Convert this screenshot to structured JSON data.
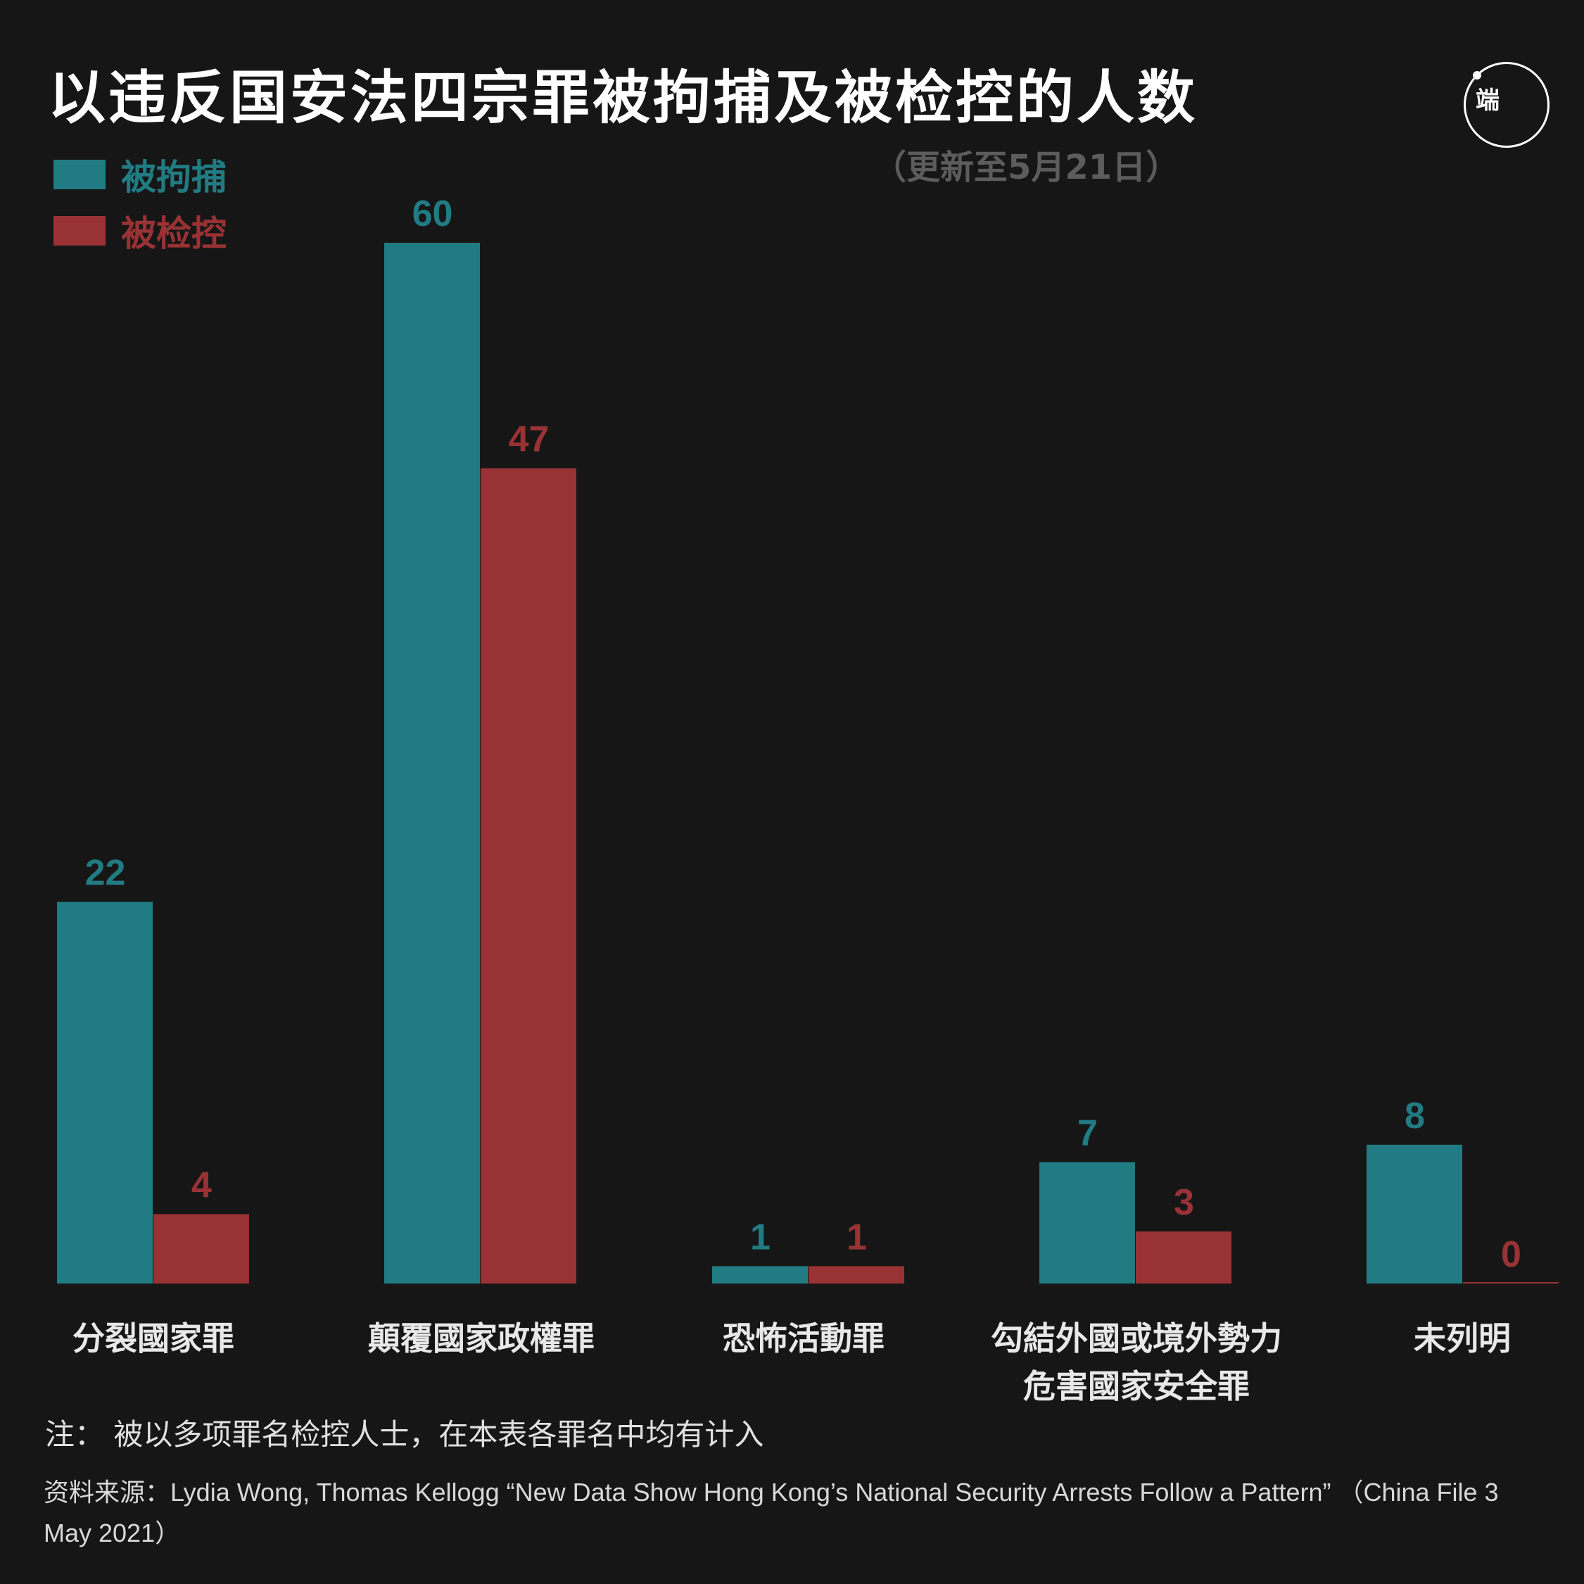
{
  "title": "以违反国安法四宗罪被拘捕及被检控的人数",
  "subtitle": "（更新至5月21日）",
  "logo": {
    "text": "端"
  },
  "colors": {
    "arrest": "#217b82",
    "charge": "#993234",
    "background": "#161616"
  },
  "note": "注： 被以多项罪名检控人士，在本表各罪名中均有计入",
  "source": "资料来源：Lydia Wong, Thomas Kellogg “New Data Show Hong Kong’s National Security Arrests Follow a Pattern” （China File 3 May 2021）",
  "chart_data": {
    "type": "bar",
    "categories": [
      "分裂國家罪",
      "顛覆國家政權罪",
      "恐怖活動罪",
      "勾結外國或境外勢力\n危害國家安全罪",
      "未列明"
    ],
    "series": [
      {
        "name": "被拘捕",
        "color": "#217b82",
        "values": [
          22,
          60,
          1,
          7,
          8
        ]
      },
      {
        "name": "被检控",
        "color": "#993234",
        "values": [
          4,
          47,
          1,
          3,
          0
        ]
      }
    ],
    "ylim": [
      0,
      60
    ],
    "grid": false,
    "legend": "top-left"
  }
}
